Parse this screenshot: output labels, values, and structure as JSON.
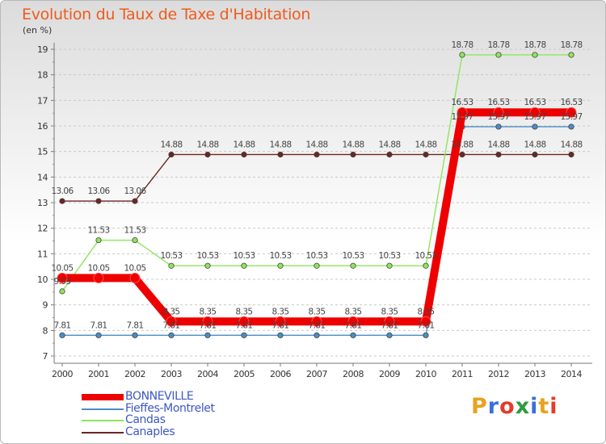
{
  "page": {
    "title": "Evolution du Taux de Taxe d'Habitation",
    "unit": "(en %)"
  },
  "brand": {
    "letters": [
      "P",
      "r",
      "o",
      "x",
      "i",
      "t",
      "i"
    ],
    "colors": [
      "#e8a21f",
      "#3b6fd8",
      "#e43b2c",
      "#2e9b3f",
      "#3b6fd8",
      "#e8a21f",
      "#e43b2c"
    ]
  },
  "chart_data": {
    "type": "line",
    "title": "Evolution du Taux de Taxe d'Habitation",
    "ylabel": "(en %)",
    "xlabel": "",
    "x": [
      "2000",
      "2001",
      "2002",
      "2003",
      "2004",
      "2005",
      "2006",
      "2007",
      "2008",
      "2009",
      "2010",
      "2011",
      "2012",
      "2013",
      "2014"
    ],
    "ylim": [
      7,
      19
    ],
    "yticks": [
      "7",
      "8",
      "9",
      "10",
      "11",
      "12",
      "13",
      "14",
      "15",
      "16",
      "17",
      "18",
      "19"
    ],
    "grid": "y-dashed",
    "legend_position": "bottom-left",
    "series": [
      {
        "name": "BONNEVILLE",
        "color": "#ee0000",
        "values": [
          10.05,
          10.05,
          10.05,
          8.35,
          8.35,
          8.35,
          8.35,
          8.35,
          8.35,
          8.35,
          8.35,
          16.53,
          16.53,
          16.53,
          16.53
        ],
        "labels": [
          "10.05",
          "10.05",
          "10.05",
          "8.35",
          "8.35",
          "8.35",
          "8.35",
          "8.35",
          "8.35",
          "8.35",
          "8.35",
          "16.53",
          "16.53",
          "16.53",
          "16.53"
        ]
      },
      {
        "name": "Fieffes-Montrelet",
        "color": "#4a8ec5",
        "values": [
          7.81,
          7.81,
          7.81,
          7.81,
          7.81,
          7.81,
          7.81,
          7.81,
          7.81,
          7.81,
          7.81,
          15.97,
          15.97,
          15.97,
          15.97
        ],
        "labels": [
          "7.81",
          "7.81",
          "7.81",
          "7.81",
          "7.81",
          "7.81",
          "7.81",
          "7.81",
          "7.81",
          "7.81",
          "7.81",
          "15.97",
          "15.97",
          "15.97",
          "15.97"
        ]
      },
      {
        "name": "Candas",
        "color": "#8ee65a",
        "values": [
          9.53,
          11.53,
          11.53,
          10.53,
          10.53,
          10.53,
          10.53,
          10.53,
          10.53,
          10.53,
          10.53,
          18.78,
          18.78,
          18.78,
          18.78
        ],
        "labels": [
          "9.53",
          "11.53",
          "11.53",
          "10.53",
          "10.53",
          "10.53",
          "10.53",
          "10.53",
          "10.53",
          "10.53",
          "10.53",
          "18.78",
          "18.78",
          "18.78",
          "18.78"
        ]
      },
      {
        "name": "Canaples",
        "color": "#6e2424",
        "values": [
          13.06,
          13.06,
          13.06,
          14.88,
          14.88,
          14.88,
          14.88,
          14.88,
          14.88,
          14.88,
          14.88,
          14.88,
          14.88,
          14.88,
          14.88
        ],
        "labels": [
          "13.06",
          "13.06",
          "13.06",
          "14.88",
          "14.88",
          "14.88",
          "14.88",
          "14.88",
          "14.88",
          "14.88",
          "14.88",
          "14.88",
          "14.88",
          "14.88",
          "14.88"
        ]
      }
    ]
  }
}
